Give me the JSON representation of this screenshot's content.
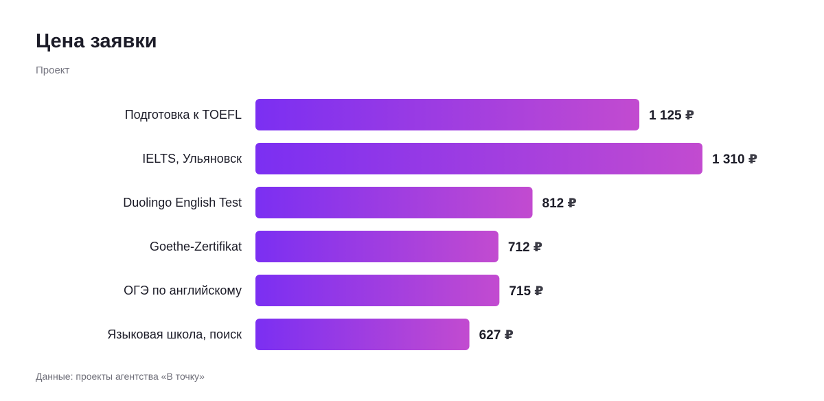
{
  "chart_data": {
    "type": "bar",
    "orientation": "horizontal",
    "title": "Цена заявки",
    "subtitle": "Проект",
    "categories": [
      "Подготовка к TOEFL",
      "IELTS, Ульяновск",
      "Duolingo English Test",
      "Goethe-Zertifikat",
      "ОГЭ по английскому",
      "Языковая школа, поиск"
    ],
    "values": [
      1125,
      1310,
      812,
      712,
      715,
      627
    ],
    "value_labels": [
      "1 125",
      "1 310",
      "812",
      "712",
      "715",
      "627"
    ],
    "unit": "₽",
    "grid": false,
    "gradient": {
      "start": "#7b2ff2",
      "end": "#c24bd0"
    }
  },
  "footnote": "Данные: проекты агентства «В точку»"
}
